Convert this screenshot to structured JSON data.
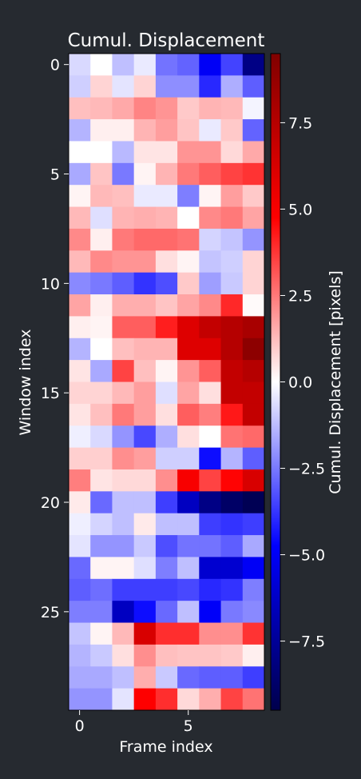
{
  "chart_data": {
    "type": "heatmap",
    "title": "Cumul. Displacement",
    "xlabel": "Frame index",
    "ylabel": "Window index",
    "colorbar_label": "Cumul. Displacement [pixels]",
    "colormap": "seismic",
    "vlim": [
      -9.5,
      9.5
    ],
    "x_ticks": [
      0,
      5
    ],
    "y_ticks": [
      0,
      5,
      10,
      15,
      20,
      25
    ],
    "colorbar_ticks": [
      7.5,
      5.0,
      2.5,
      0.0,
      -2.5,
      -5.0,
      -7.5
    ],
    "colorbar_tick_labels": [
      "7.5",
      "5.0",
      "2.5",
      "0.0",
      "−2.5",
      "−5.0",
      "−7.5"
    ],
    "n_frames": 9,
    "n_windows": 30,
    "values": [
      [
        -0.7,
        0.0,
        -1.2,
        -0.4,
        -2.6,
        -2.9,
        -5.0,
        -3.5,
        -8.0
      ],
      [
        -0.9,
        0.8,
        -0.5,
        0.8,
        -2.1,
        -2.1,
        -4.0,
        -1.5,
        -3.0
      ],
      [
        1.2,
        1.3,
        1.6,
        2.3,
        2.0,
        1.0,
        1.4,
        1.3,
        -0.2
      ],
      [
        -1.4,
        0.3,
        0.3,
        1.4,
        1.8,
        1.1,
        -0.4,
        1.0,
        -2.9
      ],
      [
        0.0,
        0.0,
        -1.3,
        0.5,
        0.5,
        2.0,
        2.0,
        0.7,
        1.6
      ],
      [
        -1.6,
        1.1,
        -2.5,
        0.2,
        1.4,
        2.5,
        3.0,
        3.5,
        3.8
      ],
      [
        0.2,
        1.3,
        1.2,
        -0.4,
        -0.4,
        -2.4,
        0.2,
        1.8,
        1.0
      ],
      [
        1.3,
        -0.6,
        1.4,
        1.5,
        1.4,
        0.0,
        2.2,
        2.5,
        1.7
      ],
      [
        2.2,
        0.3,
        2.5,
        2.8,
        2.8,
        2.6,
        -0.8,
        -1.1,
        -2.0
      ],
      [
        1.3,
        2.2,
        2.0,
        2.0,
        0.6,
        0.2,
        -1.1,
        -0.9,
        0.8
      ],
      [
        -2.2,
        -2.5,
        -3.0,
        -3.8,
        -3.3,
        1.0,
        -1.8,
        -1.0,
        0.8
      ],
      [
        1.7,
        0.3,
        1.5,
        1.5,
        1.1,
        1.7,
        2.2,
        4.0,
        0.1
      ],
      [
        0.3,
        0.2,
        3.0,
        3.0,
        4.2,
        6.0,
        7.0,
        7.5,
        8.0
      ],
      [
        -1.4,
        0.0,
        1.2,
        1.4,
        1.4,
        6.0,
        6.0,
        7.5,
        9.0
      ],
      [
        0.5,
        -1.6,
        3.5,
        1.2,
        0.2,
        2.0,
        3.0,
        7.0,
        7.5
      ],
      [
        0.8,
        0.8,
        1.3,
        1.8,
        -0.6,
        1.7,
        0.6,
        7.0,
        7.0
      ],
      [
        0.5,
        1.2,
        2.5,
        1.8,
        0.6,
        3.0,
        2.4,
        4.3,
        7.0
      ],
      [
        -0.3,
        -0.7,
        -2.0,
        -3.4,
        -1.5,
        0.6,
        0.0,
        2.6,
        2.8
      ],
      [
        0.9,
        0.9,
        2.1,
        1.8,
        -0.9,
        -0.9,
        -4.5,
        -1.4,
        -3.0
      ],
      [
        2.4,
        0.5,
        0.7,
        0.7,
        2.1,
        5.0,
        3.5,
        4.7,
        6.2
      ],
      [
        0.4,
        -2.8,
        -1.2,
        -1.2,
        -3.6,
        -6.4,
        -8.0,
        -8.8,
        -9.3
      ],
      [
        -0.3,
        -0.8,
        -1.2,
        0.4,
        -1.2,
        -1.2,
        -3.6,
        -3.8,
        -3.6
      ],
      [
        -0.5,
        -2.0,
        -2.0,
        -1.0,
        -3.3,
        -2.6,
        -2.6,
        -3.0,
        -1.6
      ],
      [
        -2.8,
        0.2,
        0.2,
        -0.6,
        -2.4,
        -1.2,
        -6.0,
        -6.0,
        -5.0
      ],
      [
        -3.0,
        -2.7,
        -3.6,
        -3.6,
        -3.6,
        -3.4,
        -4.0,
        -3.8,
        -2.4
      ],
      [
        -2.4,
        -2.4,
        -6.4,
        -4.5,
        -2.8,
        -1.2,
        -4.9,
        -2.5,
        -2.2
      ],
      [
        -1.1,
        0.2,
        1.3,
        6.2,
        3.9,
        3.9,
        2.1,
        2.1,
        3.8
      ],
      [
        -1.4,
        -1.0,
        0.6,
        2.1,
        1.2,
        1.1,
        1.1,
        1.0,
        0.3
      ],
      [
        -1.6,
        -1.6,
        -1.2,
        1.5,
        -1.0,
        -2.8,
        -3.0,
        -3.0,
        -3.6
      ],
      [
        -2.0,
        -2.0,
        -0.5,
        4.8,
        3.9,
        0.7,
        1.5,
        3.5,
        2.6
      ]
    ]
  }
}
